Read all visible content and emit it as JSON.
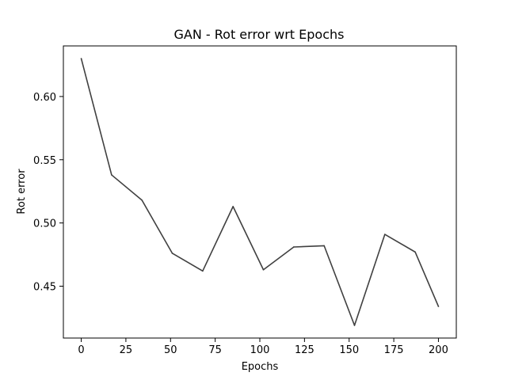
{
  "chart_data": {
    "type": "line",
    "title": "GAN - Rot error wrt Epochs",
    "xlabel": "Epochs",
    "ylabel": "Rot error",
    "xlim": [
      -10,
      210
    ],
    "ylim": [
      0.409,
      0.64
    ],
    "xticks": [
      0,
      25,
      50,
      75,
      100,
      125,
      150,
      175,
      200
    ],
    "yticks": [
      0.45,
      0.5,
      0.55,
      0.6
    ],
    "ytick_labels": [
      "0.45",
      "0.50",
      "0.55",
      "0.60"
    ],
    "grid": false,
    "line_color": "#404040",
    "series": [
      {
        "x": [
          0,
          17,
          34,
          51,
          68,
          85,
          102,
          119,
          136,
          153,
          170,
          187,
          200
        ],
        "y": [
          0.63,
          0.538,
          0.518,
          0.476,
          0.462,
          0.513,
          0.463,
          0.481,
          0.482,
          0.419,
          0.491,
          0.477,
          0.434
        ]
      }
    ]
  }
}
